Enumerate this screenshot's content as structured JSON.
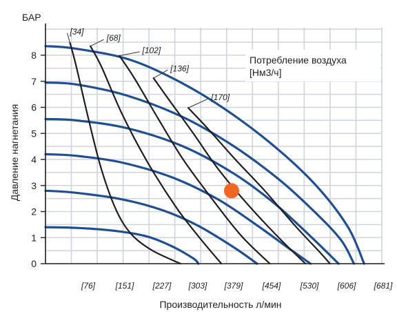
{
  "chart_data": {
    "type": "line",
    "ylabel": "Давление нагнетания",
    "y_unit_label": "БАР",
    "xlabel": "Производительность л/мин",
    "legend_title_line1": "Потребление воздуха",
    "legend_title_line2": "[Нм3/ч]",
    "legend_position": "top-right",
    "grid": true,
    "ylim": [
      0,
      9
    ],
    "xlim": [
      0,
      719
    ],
    "y_ticks": [
      0,
      1,
      2,
      3,
      4,
      5,
      6,
      7,
      8
    ],
    "x_ticks": [
      76,
      151,
      227,
      303,
      379,
      454,
      530,
      606,
      681
    ],
    "x_tick_labels": [
      "[76]",
      "[151]",
      "[227]",
      "[303]",
      "[379]",
      "[454]",
      "[530]",
      "[606]",
      "[681]"
    ],
    "pressure_curves": [
      {
        "points": [
          [
            0,
            1.4
          ],
          [
            65,
            1.37
          ],
          [
            140,
            1.25
          ],
          [
            200,
            1.04
          ],
          [
            250,
            0.65
          ],
          [
            290,
            0.2
          ],
          [
            300,
            0.0
          ]
        ]
      },
      {
        "points": [
          [
            0,
            2.8
          ],
          [
            60,
            2.72
          ],
          [
            150,
            2.47
          ],
          [
            230,
            2.05
          ],
          [
            300,
            1.45
          ],
          [
            370,
            0.62
          ],
          [
            415,
            0.0
          ]
        ]
      },
      {
        "points": [
          [
            0,
            4.2
          ],
          [
            60,
            4.14
          ],
          [
            150,
            3.88
          ],
          [
            250,
            3.3
          ],
          [
            340,
            2.45
          ],
          [
            420,
            1.4
          ],
          [
            480,
            0.55
          ],
          [
            520,
            0.0
          ]
        ]
      },
      {
        "points": [
          [
            0,
            5.55
          ],
          [
            60,
            5.5
          ],
          [
            160,
            5.2
          ],
          [
            270,
            4.5
          ],
          [
            370,
            3.45
          ],
          [
            450,
            2.3
          ],
          [
            520,
            1.05
          ],
          [
            575,
            0.0
          ]
        ]
      },
      {
        "points": [
          [
            0,
            6.95
          ],
          [
            60,
            6.88
          ],
          [
            160,
            6.45
          ],
          [
            270,
            5.62
          ],
          [
            370,
            4.5
          ],
          [
            460,
            3.2
          ],
          [
            530,
            1.95
          ],
          [
            580,
            0.9
          ],
          [
            605,
            0.0
          ]
        ]
      },
      {
        "points": [
          [
            0,
            8.35
          ],
          [
            60,
            8.25
          ],
          [
            170,
            7.8
          ],
          [
            280,
            6.8
          ],
          [
            380,
            5.55
          ],
          [
            470,
            4.15
          ],
          [
            540,
            2.8
          ],
          [
            595,
            1.35
          ],
          [
            625,
            0.0
          ]
        ]
      }
    ],
    "air_curves": [
      {
        "label": "[34]",
        "label_at": [
          48,
          8.8
        ],
        "points": [
          [
            48,
            8.48
          ],
          [
            60,
            7.6
          ],
          [
            85,
            5.5
          ],
          [
            110,
            3.6
          ],
          [
            140,
            2.0
          ],
          [
            170,
            1.1
          ],
          [
            210,
            0.5
          ],
          [
            265,
            0.0
          ]
        ]
      },
      {
        "label": "[68]",
        "label_at": [
          120,
          8.55
        ],
        "points": [
          [
            88,
            8.35
          ],
          [
            110,
            7.55
          ],
          [
            150,
            5.75
          ],
          [
            200,
            3.9
          ],
          [
            255,
            2.2
          ],
          [
            300,
            1.05
          ],
          [
            345,
            0.0
          ]
        ]
      },
      {
        "label": "[102]",
        "label_at": [
          190,
          8.08
        ],
        "points": [
          [
            145,
            7.98
          ],
          [
            175,
            7.1
          ],
          [
            220,
            5.6
          ],
          [
            270,
            4.0
          ],
          [
            330,
            2.4
          ],
          [
            385,
            1.05
          ],
          [
            440,
            0.0
          ]
        ]
      },
      {
        "label": "[136]",
        "label_at": [
          245,
          7.38
        ],
        "points": [
          [
            212,
            7.12
          ],
          [
            240,
            6.35
          ],
          [
            290,
            5.0
          ],
          [
            340,
            3.6
          ],
          [
            400,
            2.2
          ],
          [
            460,
            0.95
          ],
          [
            510,
            0.0
          ]
        ]
      },
      {
        "label": "[170]",
        "label_at": [
          325,
          6.28
        ],
        "points": [
          [
            280,
            5.98
          ],
          [
            320,
            5.15
          ],
          [
            370,
            4.05
          ],
          [
            430,
            2.8
          ],
          [
            490,
            1.45
          ],
          [
            540,
            0.4
          ],
          [
            558,
            0.0
          ]
        ]
      }
    ],
    "operating_point": {
      "x": 365,
      "y": 2.8,
      "color": "#f26522"
    },
    "colors": {
      "pressure_curve": "#1e4f94",
      "air_curve": "#1e1e1e",
      "grid": "#cfd3dc"
    }
  }
}
